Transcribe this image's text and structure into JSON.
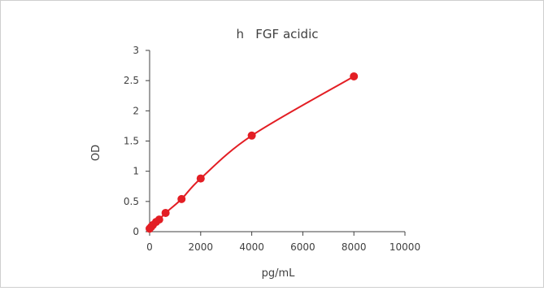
{
  "chart_data": {
    "type": "scatter",
    "title": "h   FGF acidic",
    "xlabel": "pg/mL",
    "ylabel": "OD",
    "xlim": [
      0,
      10000
    ],
    "ylim": [
      0,
      3
    ],
    "xticks": [
      "0",
      "2000",
      "4000",
      "6000",
      "8000",
      "10000"
    ],
    "yticks": [
      "0",
      "0.5",
      "1",
      "1.5",
      "2",
      "2.5",
      "3"
    ],
    "grid": false,
    "legend": "none",
    "series_color": "#e31e24",
    "series": [
      {
        "points": [
          {
            "x": 0,
            "y": 0.05
          },
          {
            "x": 62.5,
            "y": 0.08
          },
          {
            "x": 125,
            "y": 0.11
          },
          {
            "x": 250,
            "y": 0.16
          },
          {
            "x": 375,
            "y": 0.2
          },
          {
            "x": 625,
            "y": 0.31
          },
          {
            "x": 1250,
            "y": 0.54
          },
          {
            "x": 2000,
            "y": 0.88
          },
          {
            "x": 4000,
            "y": 1.59
          },
          {
            "x": 8000,
            "y": 2.57
          }
        ],
        "curve": "smooth fit"
      }
    ]
  }
}
